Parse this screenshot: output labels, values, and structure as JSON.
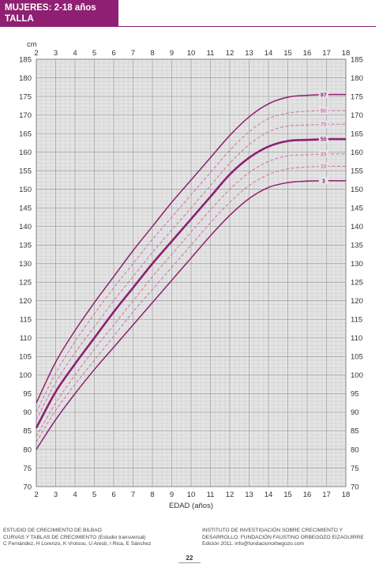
{
  "header": {
    "title": "MUJERES: 2-18 años",
    "subtitle": "TALLA"
  },
  "footer": {
    "left": [
      "ESTUDIO DE CRECIMIENTO DE BILBAO",
      "CURVAS Y TABLAS DE CRECIMIENTO (Estudio transversal)",
      "C Fernández, H Lorenzo, K Vrotsou, U Aresti, I Rica, E Sánchez"
    ],
    "right": [
      "INSTITUTO DE INVESTIGACIÓN SOBRE CRECIMIENTO Y",
      "DESARROLLO. FUNDACIÓN FAUSTINO ORBEGOZO EIZAGUIRRE",
      "Edición 2011. info@fundacionorbegozo.com"
    ]
  },
  "page_number": "22",
  "chart_data": {
    "type": "line",
    "title": "",
    "xlabel": "EDAD (años)",
    "ylabel": "cm",
    "xlim": [
      2,
      18
    ],
    "ylim": [
      70,
      185
    ],
    "xticks": [
      "2",
      "3",
      "4",
      "5",
      "6",
      "7",
      "8",
      "9",
      "10",
      "11",
      "12",
      "13",
      "14",
      "15",
      "16",
      "17",
      "18"
    ],
    "yticks": [
      "70",
      "75",
      "80",
      "85",
      "90",
      "95",
      "100",
      "105",
      "110",
      "115",
      "120",
      "125",
      "130",
      "135",
      "140",
      "145",
      "150",
      "155",
      "160",
      "165",
      "170",
      "175",
      "180",
      "185"
    ],
    "grid": true,
    "colors": {
      "solid": "#8e1f72",
      "dashed": "#d07ab0",
      "grid": "#b8b8b8",
      "bg": "#e4e4e4"
    },
    "x": [
      2,
      3,
      4,
      5,
      6,
      7,
      8,
      9,
      10,
      11,
      12,
      13,
      14,
      15,
      16,
      17,
      18
    ],
    "series": [
      {
        "name": "97",
        "style": "solid",
        "values": [
          92.5,
          103.5,
          112,
          119.5,
          126.5,
          133.5,
          140,
          146.5,
          152.5,
          158.5,
          164.5,
          169.5,
          173,
          174.8,
          175.3,
          175.5,
          175.5
        ]
      },
      {
        "name": "90",
        "style": "dashed",
        "values": [
          90,
          100.5,
          109,
          116.5,
          123.5,
          130,
          136.5,
          142.5,
          148.5,
          154.5,
          160.5,
          165.5,
          169,
          170.5,
          171,
          171.2,
          171.2
        ]
      },
      {
        "name": "75",
        "style": "dashed",
        "values": [
          88,
          98,
          106,
          113,
          120,
          126.5,
          133,
          139,
          145,
          151,
          157,
          162,
          165.5,
          167,
          167.3,
          167.5,
          167.5
        ]
      },
      {
        "name": "50",
        "style": "solid",
        "bold": true,
        "values": [
          85.8,
          95.5,
          103,
          110,
          117,
          123.5,
          130,
          136,
          142,
          148,
          154,
          158.5,
          161.5,
          163,
          163.3,
          163.5,
          163.5
        ]
      },
      {
        "name": "25",
        "style": "dashed",
        "values": [
          83.5,
          92.5,
          100,
          107,
          113.5,
          120,
          126.5,
          132.5,
          138.5,
          144.5,
          150,
          154.5,
          157.5,
          159,
          159.3,
          159.5,
          159.5
        ]
      },
      {
        "name": "10",
        "style": "dashed",
        "values": [
          82,
          90.5,
          97.5,
          104,
          110.5,
          117,
          123,
          129,
          135,
          141,
          146.5,
          151,
          154,
          155.5,
          156,
          156.2,
          156.2
        ]
      },
      {
        "name": "3",
        "style": "solid",
        "values": [
          80,
          88,
          95,
          101.5,
          107.5,
          113.5,
          119.5,
          125.5,
          131.5,
          137.5,
          143,
          147.5,
          150.5,
          151.8,
          152.2,
          152.3,
          152.3
        ]
      }
    ]
  }
}
